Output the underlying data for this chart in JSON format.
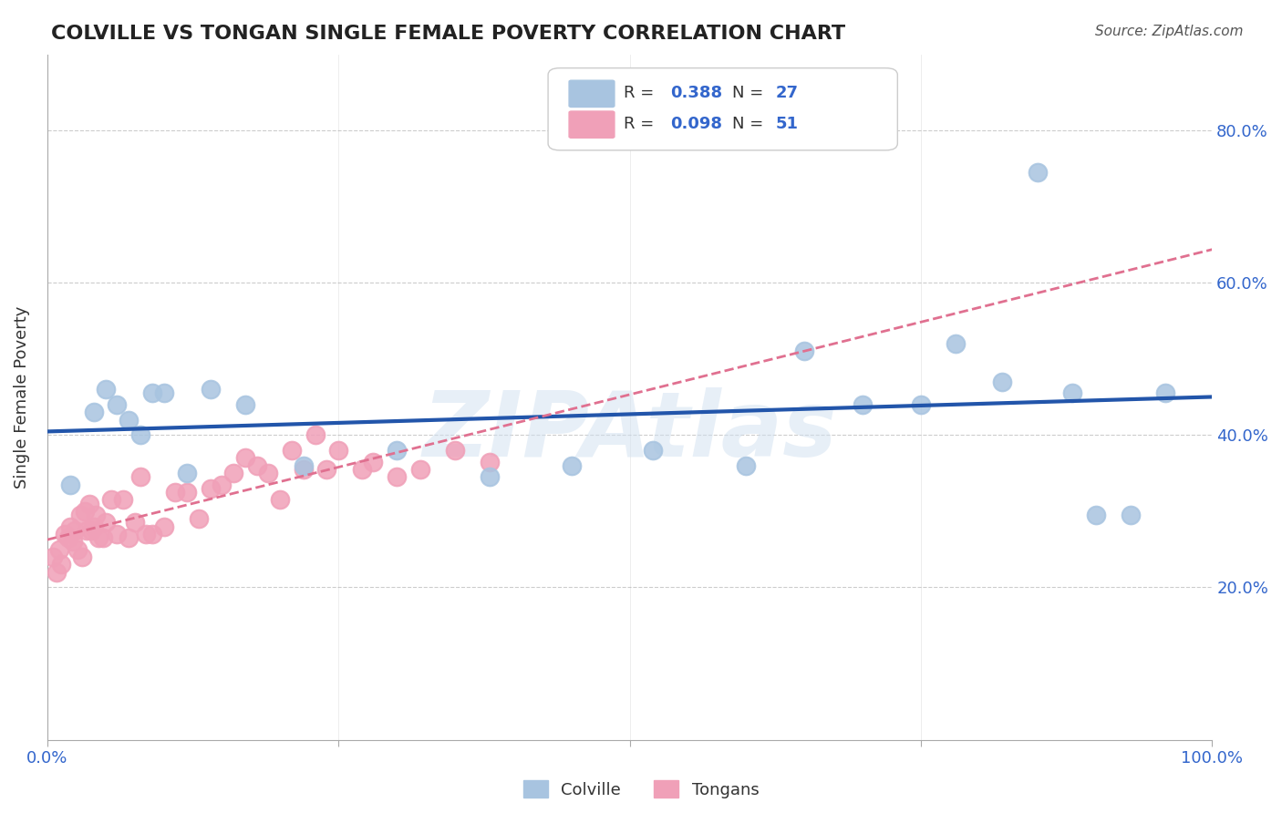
{
  "title": "COLVILLE VS TONGAN SINGLE FEMALE POVERTY CORRELATION CHART",
  "source": "Source: ZipAtlas.com",
  "xlabel": "",
  "ylabel": "Single Female Poverty",
  "xlim": [
    0.0,
    1.0
  ],
  "ylim": [
    0.0,
    1.0
  ],
  "xticks": [
    0.0,
    0.25,
    0.5,
    0.75,
    1.0
  ],
  "xtick_labels": [
    "0.0%",
    "",
    "",
    "",
    "100.0%"
  ],
  "ytick_labels": [
    "20.0%",
    "40.0%",
    "60.0%",
    "80.0%"
  ],
  "yticks": [
    0.2,
    0.4,
    0.6,
    0.8
  ],
  "colville_R": 0.388,
  "colville_N": 27,
  "tongan_R": 0.098,
  "tongan_N": 51,
  "colville_color": "#a8c4e0",
  "tongan_color": "#f0a0b8",
  "colville_line_color": "#2255aa",
  "tongan_line_color": "#e07090",
  "colville_x": [
    0.02,
    0.04,
    0.05,
    0.06,
    0.07,
    0.08,
    0.09,
    0.1,
    0.12,
    0.14,
    0.17,
    0.22,
    0.3,
    0.38,
    0.45,
    0.52,
    0.6,
    0.65,
    0.7,
    0.75,
    0.78,
    0.82,
    0.85,
    0.88,
    0.9,
    0.93,
    0.96
  ],
  "colville_y": [
    0.335,
    0.43,
    0.46,
    0.44,
    0.42,
    0.4,
    0.455,
    0.455,
    0.35,
    0.46,
    0.44,
    0.36,
    0.38,
    0.345,
    0.36,
    0.38,
    0.36,
    0.51,
    0.44,
    0.44,
    0.52,
    0.47,
    0.745,
    0.455,
    0.295,
    0.295,
    0.455
  ],
  "tongan_x": [
    0.005,
    0.008,
    0.01,
    0.012,
    0.015,
    0.018,
    0.02,
    0.022,
    0.024,
    0.026,
    0.028,
    0.03,
    0.032,
    0.034,
    0.036,
    0.038,
    0.04,
    0.042,
    0.044,
    0.048,
    0.05,
    0.055,
    0.06,
    0.065,
    0.07,
    0.075,
    0.08,
    0.085,
    0.09,
    0.1,
    0.11,
    0.12,
    0.13,
    0.14,
    0.15,
    0.16,
    0.17,
    0.18,
    0.19,
    0.2,
    0.21,
    0.22,
    0.23,
    0.24,
    0.25,
    0.27,
    0.28,
    0.3,
    0.32,
    0.35,
    0.38
  ],
  "tongan_y": [
    0.24,
    0.22,
    0.25,
    0.23,
    0.27,
    0.265,
    0.28,
    0.26,
    0.275,
    0.25,
    0.295,
    0.24,
    0.3,
    0.275,
    0.31,
    0.275,
    0.28,
    0.295,
    0.265,
    0.265,
    0.285,
    0.315,
    0.27,
    0.315,
    0.265,
    0.285,
    0.345,
    0.27,
    0.27,
    0.28,
    0.325,
    0.325,
    0.29,
    0.33,
    0.335,
    0.35,
    0.37,
    0.36,
    0.35,
    0.315,
    0.38,
    0.355,
    0.4,
    0.355,
    0.38,
    0.355,
    0.365,
    0.345,
    0.355,
    0.38,
    0.365
  ],
  "background_color": "#ffffff",
  "grid_color": "#cccccc",
  "watermark": "ZIPAtlas",
  "watermark_color": "#d0e0f0"
}
